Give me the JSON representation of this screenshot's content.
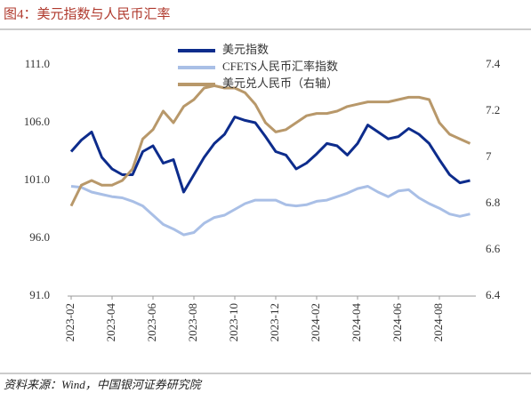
{
  "chart_data": {
    "type": "line",
    "title": "图4：美元指数与人民币汇率",
    "source": "资料来源：Wind，中国银河证券研究院",
    "categories": [
      "2023-02",
      null,
      null,
      null,
      "2023-04",
      null,
      null,
      null,
      "2023-06",
      null,
      null,
      null,
      "2023-08",
      null,
      null,
      null,
      "2023-10",
      null,
      null,
      null,
      "2023-12",
      null,
      null,
      null,
      "2024-02",
      null,
      null,
      null,
      "2024-04",
      null,
      null,
      null,
      "2024-06",
      null,
      null,
      null,
      "2024-08",
      null,
      null,
      null
    ],
    "series": [
      {
        "name": "美元指数",
        "color": "#0d2c8c",
        "axis": "y",
        "values": [
          103.5,
          104.5,
          105.2,
          103.0,
          102.0,
          101.5,
          101.5,
          103.5,
          104.0,
          102.5,
          102.8,
          100.0,
          101.5,
          103.0,
          104.2,
          105.0,
          106.5,
          106.2,
          106.0,
          104.8,
          103.5,
          103.2,
          102.0,
          102.5,
          103.3,
          104.2,
          104.0,
          103.2,
          104.2,
          105.8,
          105.2,
          104.6,
          104.8,
          105.5,
          105.0,
          104.2,
          102.8,
          101.5,
          100.8,
          101.0
        ]
      },
      {
        "name": "CFETS人民币汇率指数",
        "color": "#a9bfe6",
        "axis": "y",
        "values": [
          100.5,
          100.4,
          100.0,
          99.8,
          99.6,
          99.5,
          99.2,
          98.8,
          98.0,
          97.2,
          96.8,
          96.3,
          96.5,
          97.3,
          97.8,
          98.0,
          98.5,
          99.0,
          99.3,
          99.3,
          99.3,
          98.9,
          98.8,
          98.9,
          99.2,
          99.3,
          99.6,
          99.9,
          100.3,
          100.5,
          100.0,
          99.6,
          100.1,
          100.2,
          99.5,
          99.0,
          98.6,
          98.1,
          97.9,
          98.1
        ]
      },
      {
        "name": "美元兑人民币（右轴）",
        "color": "#b8986a",
        "axis": "y2",
        "values": [
          6.79,
          6.88,
          6.9,
          6.88,
          6.88,
          6.9,
          6.95,
          7.08,
          7.12,
          7.2,
          7.15,
          7.22,
          7.25,
          7.3,
          7.31,
          7.3,
          7.3,
          7.28,
          7.23,
          7.15,
          7.11,
          7.12,
          7.15,
          7.18,
          7.19,
          7.19,
          7.2,
          7.22,
          7.23,
          7.24,
          7.24,
          7.24,
          7.25,
          7.26,
          7.26,
          7.25,
          7.15,
          7.1,
          7.08,
          7.06
        ]
      }
    ],
    "ylim": [
      91,
      111
    ],
    "yticks": [
      {
        "value": 91,
        "label": "91.0"
      },
      {
        "value": 96,
        "label": "96.0"
      },
      {
        "value": 101,
        "label": "101.0"
      },
      {
        "value": 106,
        "label": "106.0"
      },
      {
        "value": 111,
        "label": "111.0"
      }
    ],
    "y2lim": [
      6.4,
      7.4
    ],
    "y2ticks": [
      6.4,
      6.6,
      6.8,
      7.0,
      7.2,
      7.4
    ],
    "legend": "top"
  }
}
